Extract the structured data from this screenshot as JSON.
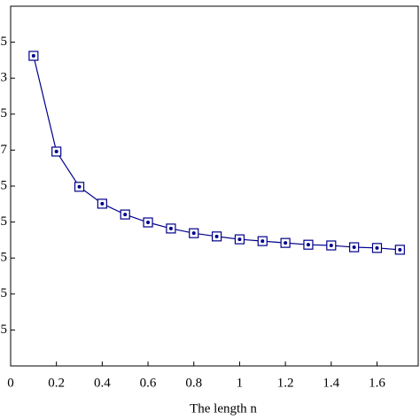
{
  "chart_data": {
    "type": "line",
    "x_label": "The length n",
    "x": [
      0.1,
      0.2,
      0.3,
      0.4,
      0.5,
      0.6,
      0.7,
      0.8,
      0.9,
      1.0,
      1.1,
      1.2,
      1.3,
      1.4,
      1.5,
      1.6,
      1.7
    ],
    "series": [
      {
        "color": "#00008b",
        "values": [
          8.62,
          5.96,
          4.98,
          4.51,
          4.21,
          3.99,
          3.82,
          3.69,
          3.6,
          3.52,
          3.47,
          3.42,
          3.37,
          3.35,
          3.3,
          3.28,
          3.23
        ]
      }
    ],
    "xlim": [
      0,
      1.78
    ],
    "xticks": [
      0,
      0.2,
      0.4,
      0.6,
      0.8,
      1,
      1.2,
      1.4,
      1.6
    ],
    "ylim": [
      0,
      10
    ],
    "yticks": [
      {
        "value": 1,
        "label": "5"
      },
      {
        "value": 2,
        "label": "5"
      },
      {
        "value": 3,
        "label": "5"
      },
      {
        "value": 4,
        "label": "5"
      },
      {
        "value": 5,
        "label": "5"
      },
      {
        "value": 6,
        "label": "7"
      },
      {
        "value": 7,
        "label": "5"
      },
      {
        "value": 8,
        "label": "3"
      },
      {
        "value": 9,
        "label": "5"
      }
    ],
    "grid": false
  }
}
